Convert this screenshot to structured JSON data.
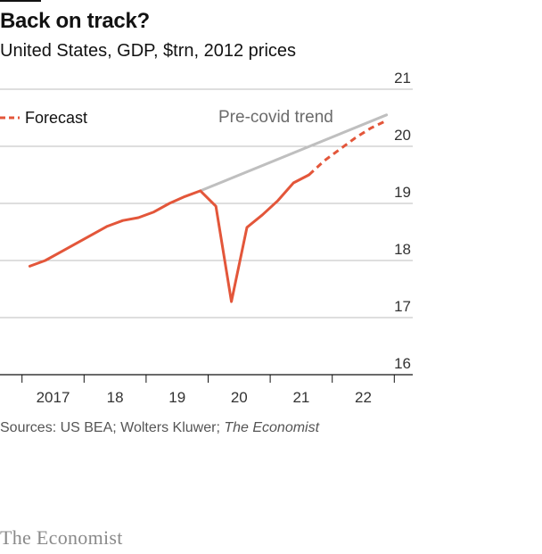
{
  "chart_data": {
    "type": "line",
    "title": "Back on track?",
    "subtitle": "United States, GDP, $trn, 2012 prices",
    "ylim": [
      16,
      21
    ],
    "yticks": [
      16,
      17,
      18,
      19,
      20,
      21
    ],
    "x_tick_labels": [
      "2017",
      "18",
      "19",
      "20",
      "21",
      "22"
    ],
    "x_domain": [
      "2016Q4",
      "2022Q4"
    ],
    "legend": [
      {
        "name": "Forecast",
        "style": "dashed"
      }
    ],
    "annotations": [
      "Pre-covid trend"
    ],
    "grid": true,
    "series": [
      {
        "name": "Actual",
        "style": "solid",
        "color": "#e3563a",
        "x": [
          "2017Q1",
          "2017Q2",
          "2017Q3",
          "2017Q4",
          "2018Q1",
          "2018Q2",
          "2018Q3",
          "2018Q4",
          "2019Q1",
          "2019Q2",
          "2019Q3",
          "2019Q4",
          "2020Q1",
          "2020Q2",
          "2020Q3",
          "2020Q4",
          "2021Q1",
          "2021Q2",
          "2021Q3"
        ],
        "values": [
          17.9,
          18.0,
          18.15,
          18.3,
          18.45,
          18.6,
          18.7,
          18.75,
          18.85,
          19.0,
          19.12,
          19.22,
          18.95,
          17.28,
          18.58,
          18.8,
          19.05,
          19.36,
          19.5
        ]
      },
      {
        "name": "Forecast",
        "style": "dashed",
        "color": "#e3563a",
        "x": [
          "2021Q3",
          "2021Q4",
          "2022Q1",
          "2022Q2",
          "2022Q3",
          "2022Q4"
        ],
        "values": [
          19.5,
          19.75,
          19.95,
          20.15,
          20.32,
          20.45
        ]
      },
      {
        "name": "Pre-covid trend",
        "style": "solid",
        "color": "#bfbfbf",
        "x": [
          "2019Q4",
          "2022Q4"
        ],
        "values": [
          19.22,
          20.55
        ]
      }
    ]
  },
  "source": {
    "prefix": "Sources: US BEA; Wolters Kluwer; ",
    "italic": "The Economist"
  },
  "brand": "The Economist",
  "colors": {
    "line": "#e3563a",
    "trend": "#bfbfbf",
    "grid": "#bdbdbd",
    "axis": "#121212"
  }
}
